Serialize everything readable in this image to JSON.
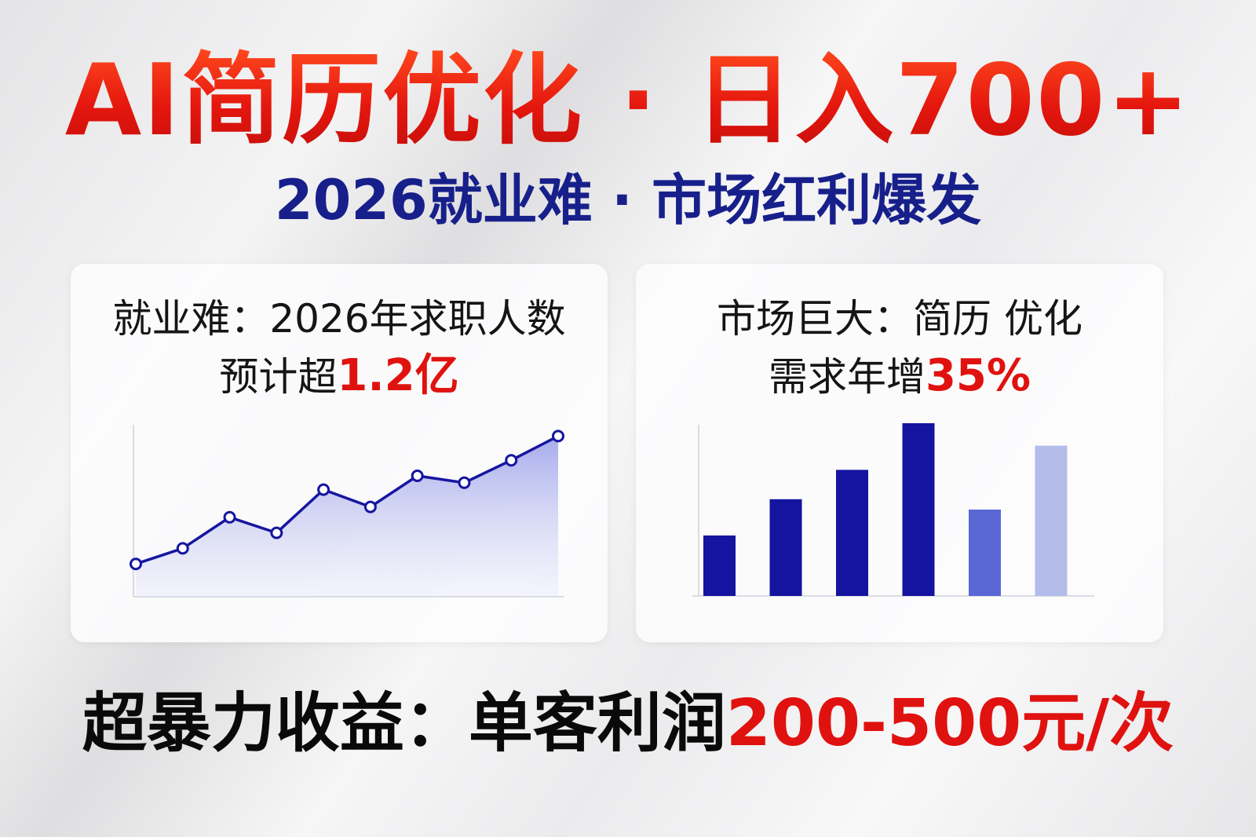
{
  "title": "AI简历优化 · 日入700+",
  "subtitle": "2026就业难 · 市场红利爆发",
  "left_card": {
    "line1": "就业难：2026年求职人数",
    "line2_prefix": "预计超",
    "line2_highlight": "1.2亿"
  },
  "right_card": {
    "line1": "市场巨大：简历 优化",
    "line2_prefix": "需求年增",
    "line2_highlight": "35%"
  },
  "bottom": {
    "prefix": "超暴力收益：单客利润",
    "highlight": "200-500元/次"
  },
  "colors": {
    "title_red": "#e5170e",
    "subtitle_navy": "#17208a",
    "highlight_red": "#e0120f",
    "chart_blue": "#1414a0"
  },
  "chart_data": [
    {
      "type": "area",
      "values": [
        19,
        28,
        46,
        37,
        62,
        52,
        70,
        66,
        79,
        93
      ],
      "grid": false,
      "legend": "none"
    },
    {
      "type": "bar",
      "values": [
        35,
        56,
        73,
        100,
        50,
        87
      ],
      "colors": [
        "#1414a0",
        "#1414a0",
        "#1414a0",
        "#1414a0",
        "#5a68d6",
        "#b4bcea"
      ],
      "grid": false,
      "legend": "none"
    }
  ]
}
